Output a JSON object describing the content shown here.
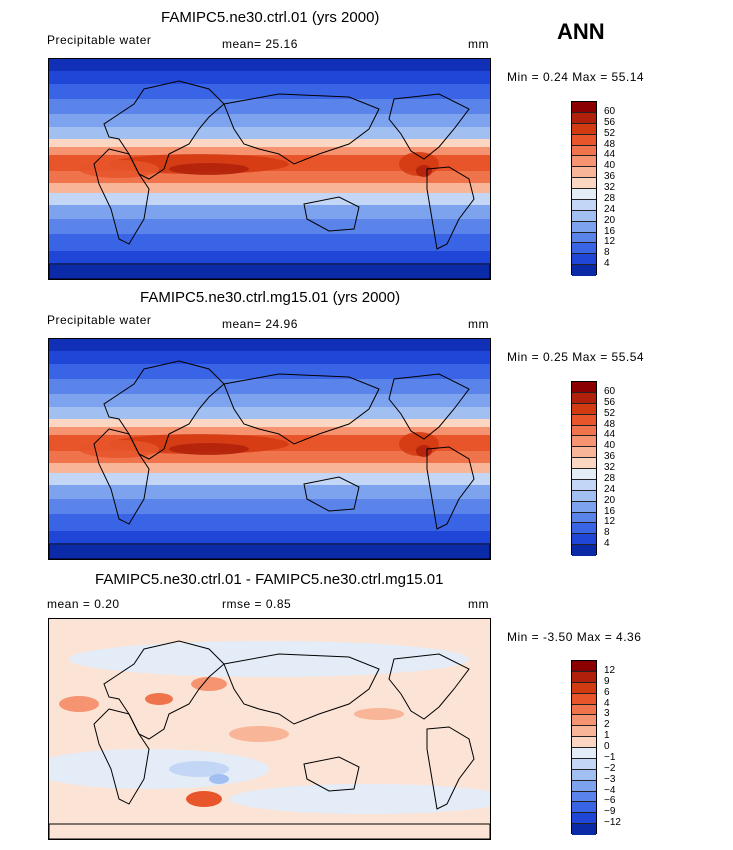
{
  "season": "ANN",
  "panels": [
    {
      "title": "FAMIPC5.ne30.ctrl.01 (yrs 2000)",
      "left_label": "Precipitable water",
      "stat_text": "mean=  25.16",
      "units": "mm",
      "minmax": "Min =    0.24 Max =   55.14",
      "colorbar_levels": [
        "60",
        "56",
        "52",
        "48",
        "44",
        "40",
        "36",
        "32",
        "28",
        "24",
        "20",
        "16",
        "12",
        "8",
        "4"
      ],
      "colors": [
        "#8a0000",
        "#b0200a",
        "#d23a12",
        "#e8552a",
        "#f0744b",
        "#f69370",
        "#f9b597",
        "#fbd6c2",
        "#e4ecf8",
        "#c3d6f5",
        "#a2bff2",
        "#7ea3ee",
        "#5a84ea",
        "#3a64e6",
        "#2046d8",
        "#0a2aa8"
      ]
    },
    {
      "title": "FAMIPC5.ne30.ctrl.mg15.01 (yrs 2000)",
      "left_label": "Precipitable water",
      "stat_text": "mean=  24.96",
      "units": "mm",
      "minmax": "Min =    0.25 Max =   55.54",
      "colorbar_levels": [
        "60",
        "56",
        "52",
        "48",
        "44",
        "40",
        "36",
        "32",
        "28",
        "24",
        "20",
        "16",
        "12",
        "8",
        "4"
      ],
      "colors": [
        "#8a0000",
        "#b0200a",
        "#d23a12",
        "#e8552a",
        "#f0744b",
        "#f69370",
        "#f9b597",
        "#fbd6c2",
        "#e4ecf8",
        "#c3d6f5",
        "#a2bff2",
        "#7ea3ee",
        "#5a84ea",
        "#3a64e6",
        "#2046d8",
        "#0a2aa8"
      ]
    },
    {
      "title": "FAMIPC5.ne30.ctrl.01 - FAMIPC5.ne30.ctrl.mg15.01",
      "left_label": "mean =    0.20",
      "stat_text": "rmse =    0.85",
      "units": "mm",
      "minmax": "Min =  -3.50 Max =    4.36",
      "colorbar_levels": [
        "12",
        "9",
        "6",
        "4",
        "3",
        "2",
        "1",
        "0",
        "−1",
        "−2",
        "−3",
        "−4",
        "−6",
        "−9",
        "−12"
      ],
      "colors": [
        "#8a0000",
        "#b0200a",
        "#d23a12",
        "#e8552a",
        "#f0744b",
        "#f69370",
        "#f9b597",
        "#fbd6c2",
        "#e4ecf8",
        "#c3d6f5",
        "#a2bff2",
        "#7ea3ee",
        "#5a84ea",
        "#3a64e6",
        "#2046d8",
        "#0a2aa8"
      ]
    }
  ],
  "chart_data": [
    {
      "type": "heatmap",
      "title": "FAMIPC5.ne30.ctrl.01 (yrs 2000)",
      "variable": "Precipitable water",
      "units": "mm",
      "mean": 25.16,
      "min": 0.24,
      "max": 55.14,
      "contour_levels": [
        4,
        8,
        12,
        16,
        20,
        24,
        28,
        32,
        36,
        40,
        44,
        48,
        52,
        56,
        60
      ]
    },
    {
      "type": "heatmap",
      "title": "FAMIPC5.ne30.ctrl.mg15.01 (yrs 2000)",
      "variable": "Precipitable water",
      "units": "mm",
      "mean": 24.96,
      "min": 0.25,
      "max": 55.54,
      "contour_levels": [
        4,
        8,
        12,
        16,
        20,
        24,
        28,
        32,
        36,
        40,
        44,
        48,
        52,
        56,
        60
      ]
    },
    {
      "type": "heatmap",
      "title": "FAMIPC5.ne30.ctrl.01 - FAMIPC5.ne30.ctrl.mg15.01",
      "units": "mm",
      "mean": 0.2,
      "rmse": 0.85,
      "min": -3.5,
      "max": 4.36,
      "contour_levels": [
        -12,
        -9,
        -6,
        -4,
        -3,
        -2,
        -1,
        0,
        1,
        2,
        3,
        4,
        6,
        9,
        12
      ]
    }
  ]
}
